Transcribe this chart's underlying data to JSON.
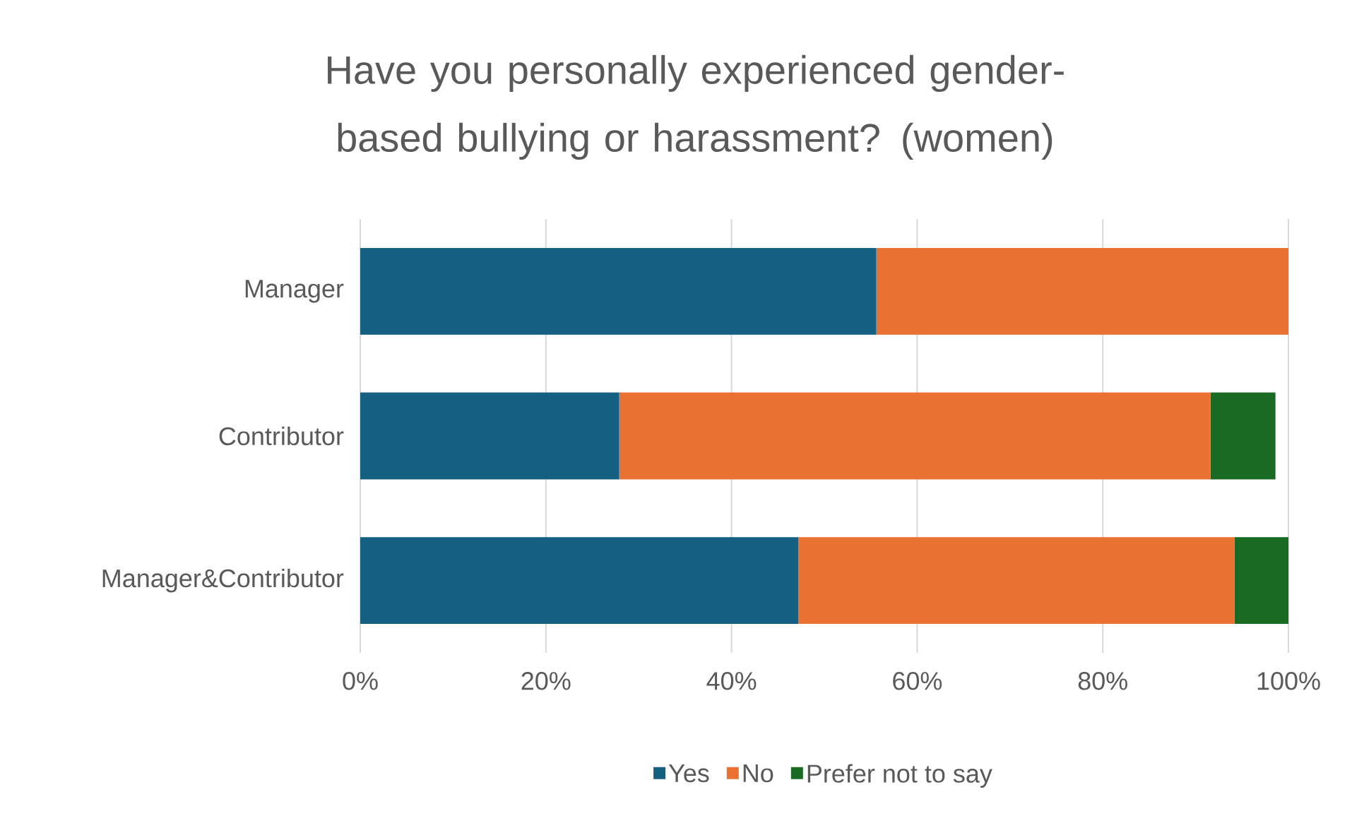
{
  "chart_data": {
    "type": "bar",
    "orientation": "horizontal",
    "stacked": true,
    "title": "Have you personally experienced gender-based bullying or harassment? (women)",
    "categories": [
      "Manager",
      "Contributor",
      "Manager&Contributor"
    ],
    "series": [
      {
        "name": "Yes",
        "color": "#156082",
        "values": [
          55.6,
          27.9,
          47.2
        ]
      },
      {
        "name": "No",
        "color": "#e97132",
        "values": [
          44.4,
          63.7,
          47.0
        ]
      },
      {
        "name": "Prefer not to say",
        "color": "#196b24",
        "values": [
          0,
          7.0,
          5.8
        ]
      }
    ],
    "xlim": [
      0,
      100
    ],
    "xticks": [
      {
        "value": 0,
        "label": "0%"
      },
      {
        "value": 20,
        "label": "20%"
      },
      {
        "value": 40,
        "label": "40%"
      },
      {
        "value": 60,
        "label": "60%"
      },
      {
        "value": 80,
        "label": "80%"
      },
      {
        "value": 100,
        "label": "100%"
      }
    ],
    "grid": "x",
    "legend": "bottom"
  }
}
